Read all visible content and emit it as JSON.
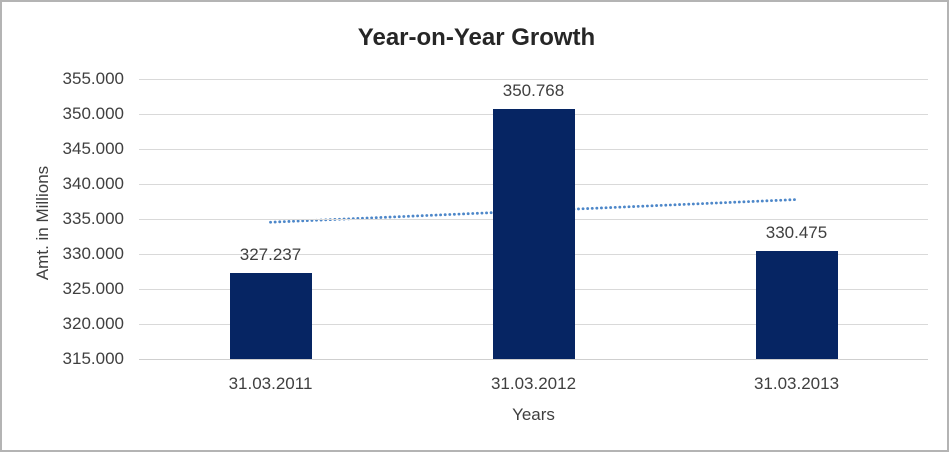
{
  "window": {
    "background_color": "#ffffff",
    "border_color": "#b4b4b4"
  },
  "chart_data": {
    "type": "bar",
    "title": "Year-on-Year Growth",
    "xlabel": "Years",
    "ylabel": "Amt. in Millions",
    "categories": [
      "31.03.2011",
      "31.03.2012",
      "31.03.2013"
    ],
    "values": [
      327.237,
      350.768,
      330.475
    ],
    "data_labels": [
      "327.237",
      "350.768",
      "330.475"
    ],
    "ylim": [
      315.0,
      355.0
    ],
    "ytick_step": 5.0,
    "ytick_labels_top_to_bottom": [
      "355.000",
      "350.000",
      "345.000",
      "340.000",
      "335.000",
      "330.000",
      "325.000",
      "320.000",
      "315.000"
    ],
    "grid": true,
    "legend": "none",
    "colors": {
      "bar_fill": "#062563",
      "trendline": "#4d87c9",
      "gridline": "#d9d9d9",
      "axis_line": "#cfcfcf",
      "title_text": "#262626",
      "label_text": "#3f3f3f"
    },
    "trendline": {
      "type": "linear",
      "style": "dotted",
      "start_value": 334.54,
      "end_value": 337.78
    }
  }
}
